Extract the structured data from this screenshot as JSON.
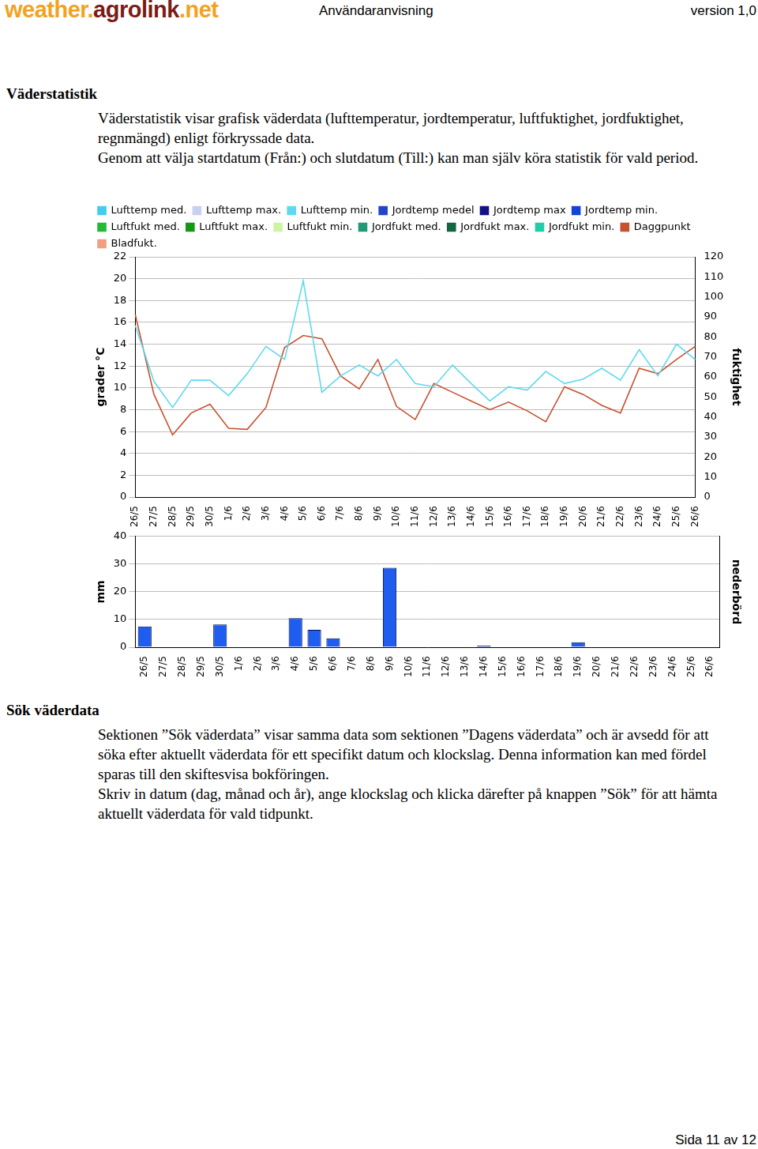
{
  "header": {
    "logo_parts": [
      "weather.",
      "agrolink",
      ".net"
    ],
    "title": "Användaranvisning",
    "version": "version 1,0"
  },
  "sections": [
    {
      "heading": "Väderstatistik",
      "paragraphs": [
        "Väderstatistik visar grafisk väderdata (lufttemperatur, jordtemperatur, luftfuktighet, jordfuktighet, regnmängd) enligt förkryssade data.",
        "Genom att välja startdatum (Från:) och slutdatum (Till:) kan man själv köra statistik för vald period."
      ]
    },
    {
      "heading": "Sök väderdata",
      "paragraphs": [
        "Sektionen ”Sök väderdata” visar samma data som sektionen ”Dagens väderdata” och är avsedd för att söka efter aktuellt väderdata för ett specifikt datum och klockslag. Denna information kan med fördel sparas till den skiftesvisa bokföringen.",
        "Skriv in datum (dag, månad och år), ange klockslag och klicka därefter på knappen ”Sök” för att hämta aktuellt väderdata för vald tidpunkt."
      ]
    }
  ],
  "chart_data": [
    {
      "type": "line",
      "ylabel": "grader °C",
      "y2label": "fuktighet",
      "categories": [
        "26/5",
        "27/5",
        "28/5",
        "29/5",
        "30/5",
        "1/6",
        "2/6",
        "3/6",
        "4/6",
        "5/6",
        "6/6",
        "7/6",
        "8/6",
        "9/6",
        "10/6",
        "11/6",
        "12/6",
        "13/6",
        "14/6",
        "15/6",
        "16/6",
        "17/6",
        "18/6",
        "19/6",
        "20/6",
        "21/6",
        "22/6",
        "23/6",
        "24/6",
        "25/6",
        "26/6"
      ],
      "ylim": [
        0,
        22
      ],
      "yticks": [
        0,
        2,
        4,
        6,
        8,
        10,
        12,
        14,
        16,
        18,
        20,
        22
      ],
      "y2lim": [
        0,
        120
      ],
      "y2ticks": [
        0,
        10,
        20,
        30,
        40,
        50,
        60,
        70,
        80,
        90,
        100,
        110,
        120
      ],
      "grid": true,
      "legend": "top",
      "series": [
        {
          "name": "Lufttemp med.",
          "color": "#44ccee",
          "values": [
            null,
            null,
            null,
            null,
            null,
            null,
            null,
            null,
            null,
            null,
            null,
            null,
            null,
            null,
            null,
            null,
            null,
            null,
            null,
            null,
            null,
            null,
            null,
            null,
            null,
            null,
            null,
            null,
            null,
            null,
            null
          ]
        },
        {
          "name": "Lufttemp max.",
          "color": "#c8d0f0",
          "values": [
            null,
            null,
            null,
            null,
            null,
            null,
            null,
            null,
            null,
            null,
            null,
            null,
            null,
            null,
            null,
            null,
            null,
            null,
            null,
            null,
            null,
            null,
            null,
            null,
            null,
            null,
            null,
            null,
            null,
            null,
            null
          ]
        },
        {
          "name": "Lufttemp min.",
          "color": "#5fd9ef",
          "values": [
            15.7,
            10.6,
            8.2,
            10.7,
            10.7,
            9.3,
            11.3,
            13.8,
            12.6,
            19.8,
            9.6,
            11.1,
            12.1,
            11.1,
            12.6,
            10.4,
            10.1,
            12.1,
            10.4,
            8.8,
            10.1,
            9.8,
            11.5,
            10.4,
            10.8,
            11.8,
            10.7,
            13.5,
            11.1,
            14.0,
            12.6
          ]
        },
        {
          "name": "Jordtemp medel",
          "color": "#2244cc",
          "values": [
            null,
            null,
            null,
            null,
            null,
            null,
            null,
            null,
            null,
            null,
            null,
            null,
            null,
            null,
            null,
            null,
            null,
            null,
            null,
            null,
            null,
            null,
            null,
            null,
            null,
            null,
            null,
            null,
            null,
            null,
            null
          ]
        },
        {
          "name": "Jordtemp max",
          "color": "#111188",
          "values": [
            null,
            null,
            null,
            null,
            null,
            null,
            null,
            null,
            null,
            null,
            null,
            null,
            null,
            null,
            null,
            null,
            null,
            null,
            null,
            null,
            null,
            null,
            null,
            null,
            null,
            null,
            null,
            null,
            null,
            null,
            null
          ]
        },
        {
          "name": "Jordtemp min.",
          "color": "#1144dd",
          "values": [
            null,
            null,
            null,
            null,
            null,
            null,
            null,
            null,
            null,
            null,
            null,
            null,
            null,
            null,
            null,
            null,
            null,
            null,
            null,
            null,
            null,
            null,
            null,
            null,
            null,
            null,
            null,
            null,
            null,
            null,
            null
          ]
        },
        {
          "name": "Luftfukt med.",
          "color": "#22bb33",
          "values": [
            null,
            null,
            null,
            null,
            null,
            null,
            null,
            null,
            null,
            null,
            null,
            null,
            null,
            null,
            null,
            null,
            null,
            null,
            null,
            null,
            null,
            null,
            null,
            null,
            null,
            null,
            null,
            null,
            null,
            null,
            null
          ]
        },
        {
          "name": "Luftfukt max.",
          "color": "#119911",
          "values": [
            null,
            null,
            null,
            null,
            null,
            null,
            null,
            null,
            null,
            null,
            null,
            null,
            null,
            null,
            null,
            null,
            null,
            null,
            null,
            null,
            null,
            null,
            null,
            null,
            null,
            null,
            null,
            null,
            null,
            null,
            null
          ]
        },
        {
          "name": "Luftfukt min.",
          "color": "#ccf5a0",
          "values": [
            null,
            null,
            null,
            null,
            null,
            null,
            null,
            null,
            null,
            null,
            null,
            null,
            null,
            null,
            null,
            null,
            null,
            null,
            null,
            null,
            null,
            null,
            null,
            null,
            null,
            null,
            null,
            null,
            null,
            null,
            null
          ]
        },
        {
          "name": "Jordfukt med.",
          "color": "#229977",
          "values": [
            null,
            null,
            null,
            null,
            null,
            null,
            null,
            null,
            null,
            null,
            null,
            null,
            null,
            null,
            null,
            null,
            null,
            null,
            null,
            null,
            null,
            null,
            null,
            null,
            null,
            null,
            null,
            null,
            null,
            null,
            null
          ]
        },
        {
          "name": "Jordfukt max.",
          "color": "#116644",
          "values": [
            null,
            null,
            null,
            null,
            null,
            null,
            null,
            null,
            null,
            null,
            null,
            null,
            null,
            null,
            null,
            null,
            null,
            null,
            null,
            null,
            null,
            null,
            null,
            null,
            null,
            null,
            null,
            null,
            null,
            null,
            null
          ]
        },
        {
          "name": "Jordfukt min.",
          "color": "#22ccaa",
          "values": [
            null,
            null,
            null,
            null,
            null,
            null,
            null,
            null,
            null,
            null,
            null,
            null,
            null,
            null,
            null,
            null,
            null,
            null,
            null,
            null,
            null,
            null,
            null,
            null,
            null,
            null,
            null,
            null,
            null,
            null,
            null
          ]
        },
        {
          "name": "Daggpunkt",
          "color": "#c8502e",
          "values": [
            16.7,
            9.4,
            5.7,
            7.7,
            8.5,
            6.3,
            6.2,
            8.2,
            13.7,
            14.8,
            14.5,
            11.1,
            9.9,
            12.6,
            8.3,
            7.1,
            10.4,
            9.6,
            8.8,
            8.0,
            8.7,
            7.9,
            6.9,
            10.1,
            9.4,
            8.4,
            7.7,
            11.8,
            11.3,
            12.6,
            13.8
          ]
        },
        {
          "name": "Bladfukt.",
          "color": "#f0a080",
          "values": [
            null,
            null,
            null,
            null,
            null,
            null,
            null,
            null,
            null,
            null,
            null,
            null,
            null,
            null,
            null,
            null,
            null,
            null,
            null,
            null,
            null,
            null,
            null,
            null,
            null,
            null,
            null,
            null,
            null,
            null,
            null
          ]
        }
      ]
    },
    {
      "type": "bar",
      "ylabel": "mm",
      "y2label": "nederbörd",
      "categories": [
        "26/5",
        "27/5",
        "28/5",
        "29/5",
        "30/5",
        "1/6",
        "2/6",
        "3/6",
        "4/6",
        "5/6",
        "6/6",
        "7/6",
        "8/6",
        "9/6",
        "10/6",
        "11/6",
        "12/6",
        "13/6",
        "14/6",
        "15/6",
        "16/6",
        "17/6",
        "18/6",
        "19/6",
        "20/6",
        "21/6",
        "22/6",
        "23/6",
        "24/6",
        "25/6",
        "26/6"
      ],
      "values": [
        7.5,
        0,
        0,
        0,
        8.2,
        0,
        0,
        0,
        10.5,
        6.3,
        3.2,
        0,
        0,
        28.7,
        0,
        0,
        0,
        0,
        0.6,
        0,
        0,
        0,
        0,
        1.8,
        0,
        0,
        0,
        0,
        0,
        0,
        0
      ],
      "color": "#1f5cf0",
      "ylim": [
        0,
        40
      ],
      "yticks": [
        0,
        10,
        20,
        30,
        40
      ],
      "grid": true
    }
  ],
  "footer": "Sida 11 av 12"
}
